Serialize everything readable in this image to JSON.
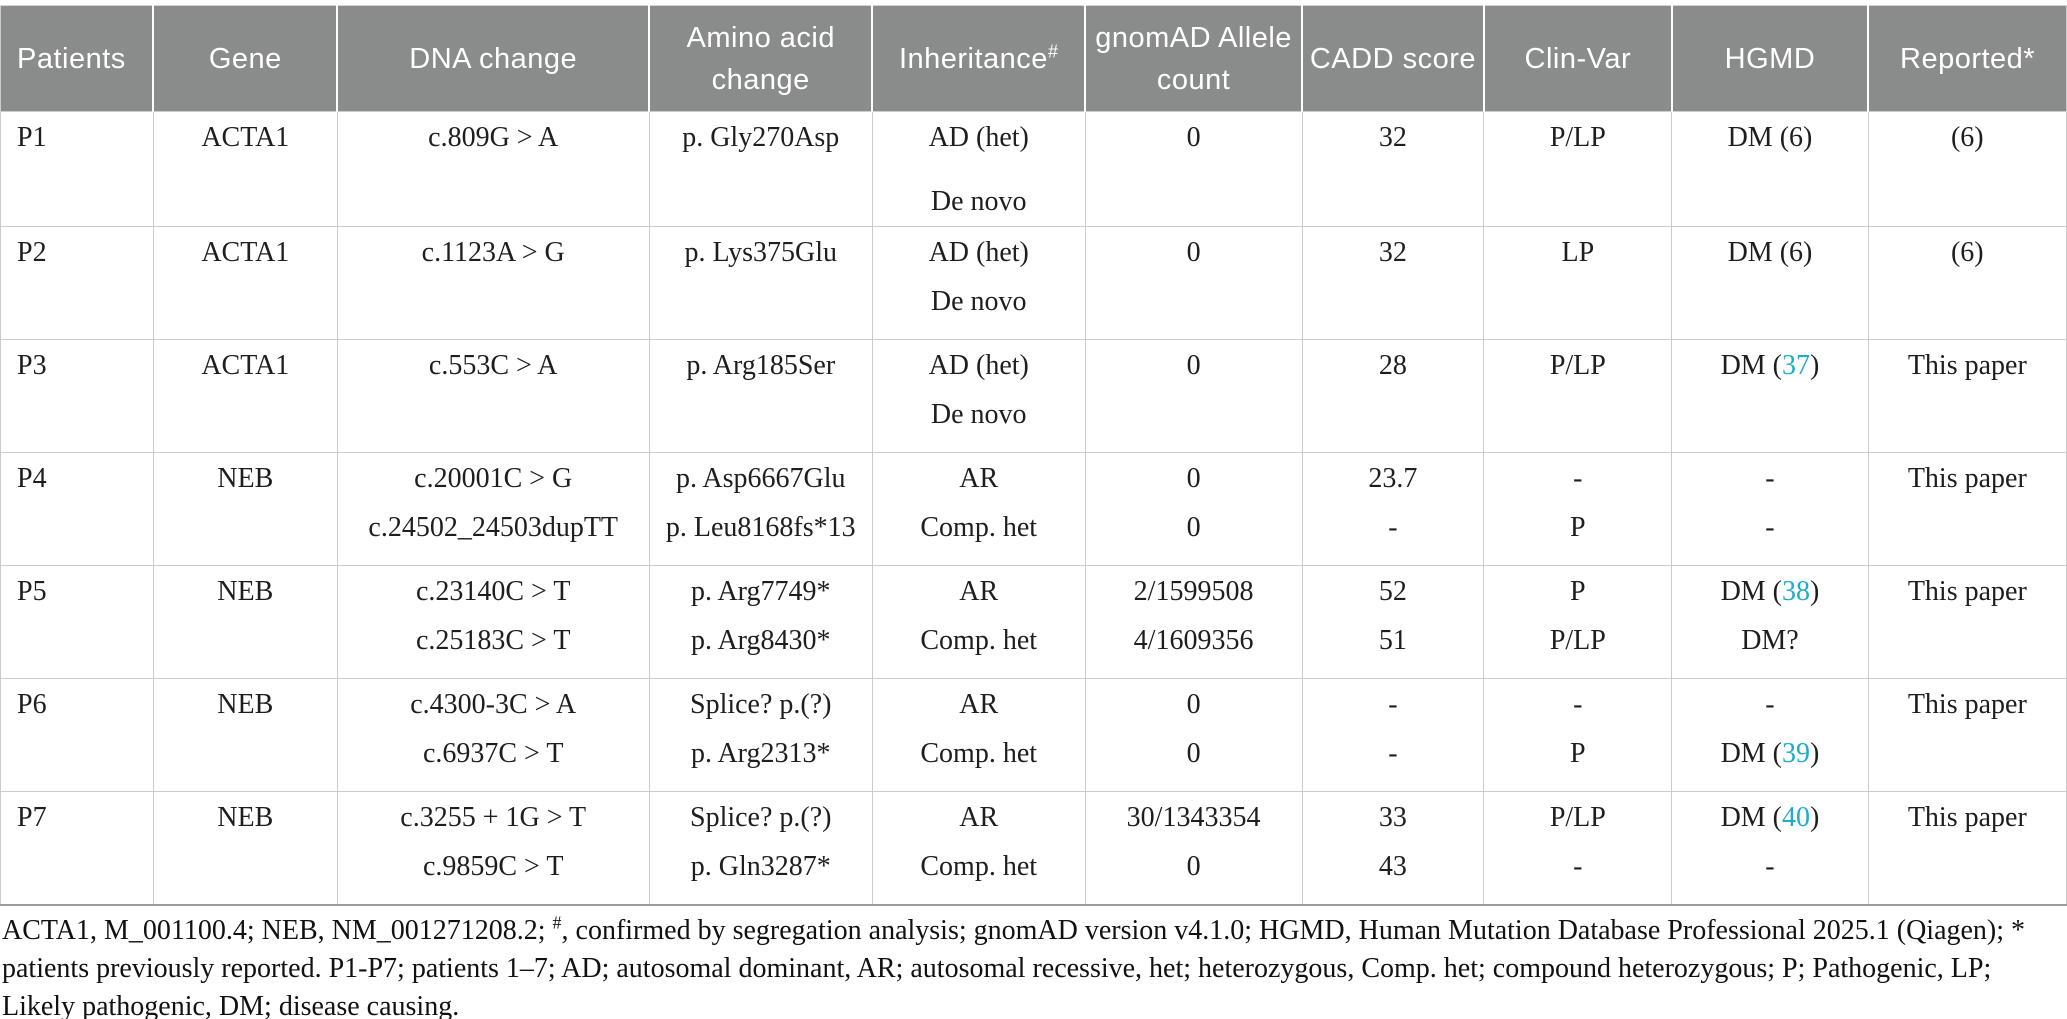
{
  "colors": {
    "header_bg": "#8a8b8b",
    "header_text": "#ffffff",
    "citation": "#1eadc5",
    "body_text": "#1e1e1e",
    "border": "#cccccc"
  },
  "table": {
    "columns": [
      {
        "label": "Patients",
        "sup": "",
        "width": "7.4%"
      },
      {
        "label": "Gene",
        "sup": "",
        "width": "8.9%"
      },
      {
        "label": "DNA change",
        "sup": "",
        "width": "15.1%"
      },
      {
        "label": "Amino acid change",
        "sup": "",
        "width": "10.8%"
      },
      {
        "label": "Inheritance",
        "sup": "#",
        "width": "10.3%"
      },
      {
        "label": "gnomAD Allele count",
        "sup": "",
        "width": "10.5%"
      },
      {
        "label": "CADD score",
        "sup": "",
        "width": "8.8%"
      },
      {
        "label": "Clin-Var",
        "sup": "",
        "width": "9.1%"
      },
      {
        "label": "HGMD",
        "sup": "",
        "width": "9.5%"
      },
      {
        "label": "Reported*",
        "sup": "",
        "width": "9.6%"
      }
    ],
    "rows": [
      {
        "cells": [
          [
            "P1"
          ],
          [
            "ACTA1"
          ],
          [
            "c.809G > A"
          ],
          [
            "p. Gly270Asp"
          ],
          [
            "AD (het)",
            "De novo"
          ],
          [
            "0"
          ],
          [
            "32"
          ],
          [
            "P/LP"
          ],
          [
            "DM (6)"
          ],
          [
            "(6)"
          ]
        ]
      },
      {
        "cells": [
          [
            "P2"
          ],
          [
            "ACTA1"
          ],
          [
            "c.1123A > G"
          ],
          [
            "p. Lys375Glu"
          ],
          [
            "AD (het)",
            "De novo"
          ],
          [
            "0"
          ],
          [
            "32"
          ],
          [
            "LP"
          ],
          [
            "DM (6)"
          ],
          [
            "(6)"
          ]
        ]
      },
      {
        "cells": [
          [
            "P3"
          ],
          [
            "ACTA1"
          ],
          [
            "c.553C > A"
          ],
          [
            "p. Arg185Ser"
          ],
          [
            "AD (het)",
            "De novo"
          ],
          [
            "0"
          ],
          [
            "28"
          ],
          [
            "P/LP"
          ],
          [
            [
              {
                "t": "DM ("
              },
              {
                "t": "37",
                "cite": true
              },
              {
                "t": ")"
              }
            ]
          ],
          [
            "This paper"
          ]
        ]
      },
      {
        "cells": [
          [
            "P4"
          ],
          [
            "NEB"
          ],
          [
            "c.20001C > G",
            "c.24502_24503dupTT"
          ],
          [
            "p. Asp6667Glu",
            "p. Leu8168fs*13"
          ],
          [
            "AR",
            "Comp. het"
          ],
          [
            "0",
            "0"
          ],
          [
            "23.7",
            "-"
          ],
          [
            "-",
            "P"
          ],
          [
            "-",
            "-"
          ],
          [
            "This paper"
          ]
        ]
      },
      {
        "cells": [
          [
            "P5"
          ],
          [
            "NEB"
          ],
          [
            "c.23140C > T",
            "c.25183C > T"
          ],
          [
            "p. Arg7749*",
            "p. Arg8430*"
          ],
          [
            "AR",
            "Comp. het"
          ],
          [
            "2/1599508",
            "4/1609356"
          ],
          [
            "52",
            "51"
          ],
          [
            "P",
            "P/LP"
          ],
          [
            [
              {
                "t": "DM ("
              },
              {
                "t": "38",
                "cite": true
              },
              {
                "t": ")"
              }
            ],
            "DM?"
          ],
          [
            "This paper"
          ]
        ]
      },
      {
        "cells": [
          [
            "P6"
          ],
          [
            "NEB"
          ],
          [
            "c.4300-3C > A",
            "c.6937C > T"
          ],
          [
            "Splice? p.(?)",
            "p. Arg2313*"
          ],
          [
            "AR",
            "Comp. het"
          ],
          [
            "0",
            "0"
          ],
          [
            "-",
            "-"
          ],
          [
            "-",
            "P"
          ],
          [
            "-",
            [
              {
                "t": "DM ("
              },
              {
                "t": "39",
                "cite": true
              },
              {
                "t": ")"
              }
            ]
          ],
          [
            "This paper"
          ]
        ]
      },
      {
        "cells": [
          [
            "P7"
          ],
          [
            "NEB"
          ],
          [
            "c.3255 + 1G > T",
            "c.9859C > T"
          ],
          [
            "Splice? p.(?)",
            "p. Gln3287*"
          ],
          [
            "AR",
            "Comp. het"
          ],
          [
            "30/1343354",
            "0"
          ],
          [
            "33",
            "43"
          ],
          [
            "P/LP",
            "-"
          ],
          [
            [
              {
                "t": "DM ("
              },
              {
                "t": "40",
                "cite": true
              },
              {
                "t": ")"
              }
            ],
            "-"
          ],
          [
            "This paper"
          ]
        ]
      }
    ]
  },
  "footnote": {
    "part1": "ACTA1, M_001100.4; NEB, NM_001271208.2; ",
    "sup": "#",
    "part2": ", confirmed by segregation analysis; gnomAD version v4.1.0; HGMD, Human Mutation Database Professional 2025.1 (Qiagen); * patients previously reported. P1-P7; patients 1–7; AD; autosomal dominant, AR; autosomal recessive, het; heterozygous, Comp. het; compound heterozygous; P; Pathogenic, LP; Likely pathogenic, DM; disease causing."
  }
}
